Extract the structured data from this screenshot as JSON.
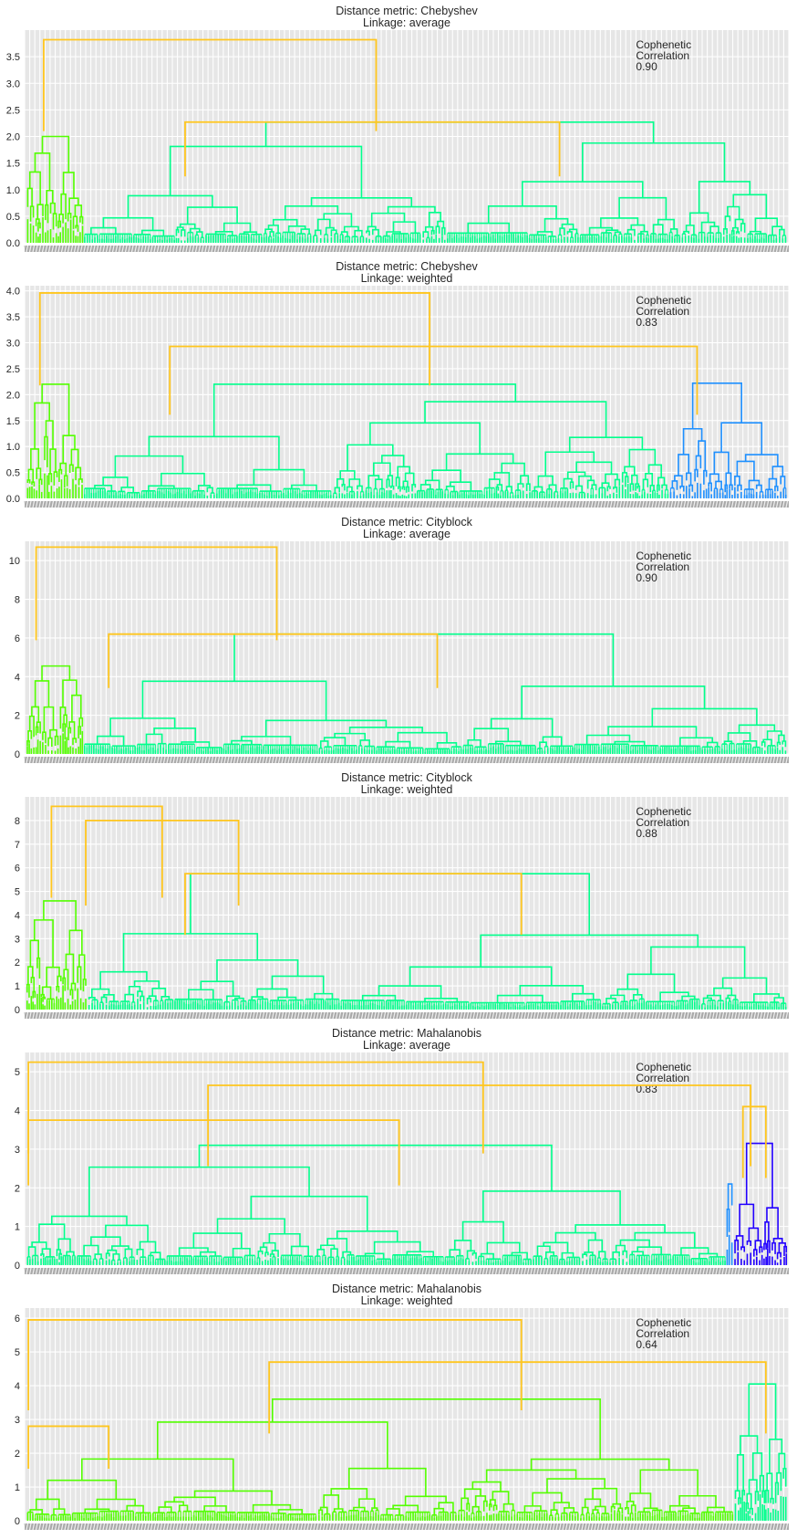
{
  "figure": {
    "background": "#ffffff",
    "plot_background": "#e6e6e6",
    "grid_color": "#ffffff",
    "annotation_line1": "Cophenetic",
    "annotation_line2": "Correlation"
  },
  "colors": {
    "link_above_threshold": "#ffc61e",
    "lime": "#53ff00",
    "spring_green": "#00ff8c",
    "azure": "#1e90ff",
    "blue": "#2200ff",
    "teal": "#1ec8c8"
  },
  "chart_data": [
    {
      "type": "dendrogram",
      "title_line1": "Distance metric: Chebyshev",
      "title_line2": "Linkage: average",
      "cophenetic_correlation": "0.90",
      "ylim": [
        0,
        4.0
      ],
      "y_ticks": [
        "0.0",
        "0.5",
        "1.0",
        "1.5",
        "2.0",
        "2.5",
        "3.0",
        "3.5"
      ],
      "grid": true,
      "leaf_labels_readable": false,
      "clusters": [
        {
          "color": "lime",
          "leaf_share": 0.075,
          "height": 2.0
        },
        {
          "color": "spring_green",
          "leaf_share": 0.925,
          "height": 2.27
        }
      ],
      "main_merges": [
        {
          "height": 3.82,
          "from_x": 0.025,
          "to_x": 0.46
        },
        {
          "height": 2.27,
          "from_x": 0.21,
          "to_x": 0.7
        }
      ]
    },
    {
      "type": "dendrogram",
      "title_line1": "Distance metric: Chebyshev",
      "title_line2": "Linkage: weighted",
      "cophenetic_correlation": "0.83",
      "ylim": [
        0,
        4.1
      ],
      "y_ticks": [
        "0.0",
        "0.5",
        "1.0",
        "1.5",
        "2.0",
        "2.5",
        "3.0",
        "3.5",
        "4.0"
      ],
      "grid": true,
      "leaf_labels_readable": false,
      "clusters": [
        {
          "color": "lime",
          "leaf_share": 0.075,
          "height": 2.2
        },
        {
          "color": "spring_green",
          "leaf_share": 0.77,
          "height": 2.2
        },
        {
          "color": "azure",
          "leaf_share": 0.155,
          "height": 2.22
        }
      ],
      "main_merges": [
        {
          "height": 3.96,
          "from_x": 0.02,
          "to_x": 0.53
        },
        {
          "height": 2.93,
          "from_x": 0.19,
          "to_x": 0.88
        }
      ]
    },
    {
      "type": "dendrogram",
      "title_line1": "Distance metric: Cityblock",
      "title_line2": "Linkage: average",
      "cophenetic_correlation": "0.90",
      "ylim": [
        0,
        11.0
      ],
      "y_ticks": [
        "0",
        "2",
        "4",
        "6",
        "8",
        "10"
      ],
      "grid": true,
      "leaf_labels_readable": false,
      "clusters": [
        {
          "color": "lime",
          "leaf_share": 0.075,
          "height": 4.55
        },
        {
          "color": "spring_green",
          "leaf_share": 0.925,
          "height": 6.2
        }
      ],
      "main_merges": [
        {
          "height": 10.7,
          "from_x": 0.015,
          "to_x": 0.33
        },
        {
          "height": 6.2,
          "from_x": 0.11,
          "to_x": 0.54
        }
      ]
    },
    {
      "type": "dendrogram",
      "title_line1": "Distance metric: Cityblock",
      "title_line2": "Linkage: weighted",
      "cophenetic_correlation": "0.88",
      "ylim": [
        0,
        9.0
      ],
      "y_ticks": [
        "0",
        "1",
        "2",
        "3",
        "4",
        "5",
        "6",
        "7",
        "8"
      ],
      "grid": true,
      "leaf_labels_readable": false,
      "clusters": [
        {
          "color": "lime",
          "leaf_share": 0.08,
          "height": 4.6
        },
        {
          "color": "spring_green",
          "leaf_share": 0.92,
          "height": 5.75
        }
      ],
      "main_merges": [
        {
          "height": 8.6,
          "from_x": 0.035,
          "to_x": 0.18
        },
        {
          "height": 8.0,
          "from_x": 0.08,
          "to_x": 0.28
        },
        {
          "height": 5.75,
          "from_x": 0.21,
          "to_x": 0.65
        }
      ]
    },
    {
      "type": "dendrogram",
      "title_line1": "Distance metric: Mahalanobis",
      "title_line2": "Linkage: average",
      "cophenetic_correlation": "0.83",
      "ylim": [
        0,
        5.5
      ],
      "y_ticks": [
        "0",
        "1",
        "2",
        "3",
        "4",
        "5"
      ],
      "grid": true,
      "leaf_labels_readable": false,
      "clusters": [
        {
          "color": "spring_green",
          "leaf_share": 0.92,
          "height": 3.1
        },
        {
          "color": "azure",
          "leaf_share": 0.01,
          "height": 2.1
        },
        {
          "color": "blue",
          "leaf_share": 0.07,
          "height": 3.15
        }
      ],
      "main_merges": [
        {
          "height": 5.25,
          "from_x": 0.005,
          "to_x": 0.6
        },
        {
          "height": 4.65,
          "from_x": 0.24,
          "to_x": 0.95
        },
        {
          "height": 4.1,
          "from_x": 0.94,
          "to_x": 0.97
        },
        {
          "height": 3.75,
          "from_x": 0.005,
          "to_x": 0.49
        }
      ]
    },
    {
      "type": "dendrogram",
      "title_line1": "Distance metric: Mahalanobis",
      "title_line2": "Linkage: weighted",
      "cophenetic_correlation": "0.64",
      "ylim": [
        0,
        6.3
      ],
      "y_ticks": [
        "0",
        "1",
        "2",
        "3",
        "4",
        "5",
        "6"
      ],
      "grid": true,
      "leaf_labels_readable": false,
      "clusters": [
        {
          "color": "lime",
          "leaf_share": 0.93,
          "height": 3.6
        },
        {
          "color": "spring_green",
          "leaf_share": 0.07,
          "height": 4.05
        }
      ],
      "main_merges": [
        {
          "height": 5.95,
          "from_x": 0.005,
          "to_x": 0.65
        },
        {
          "height": 4.7,
          "from_x": 0.32,
          "to_x": 0.97
        },
        {
          "height": 2.8,
          "from_x": 0.005,
          "to_x": 0.11
        }
      ]
    }
  ]
}
